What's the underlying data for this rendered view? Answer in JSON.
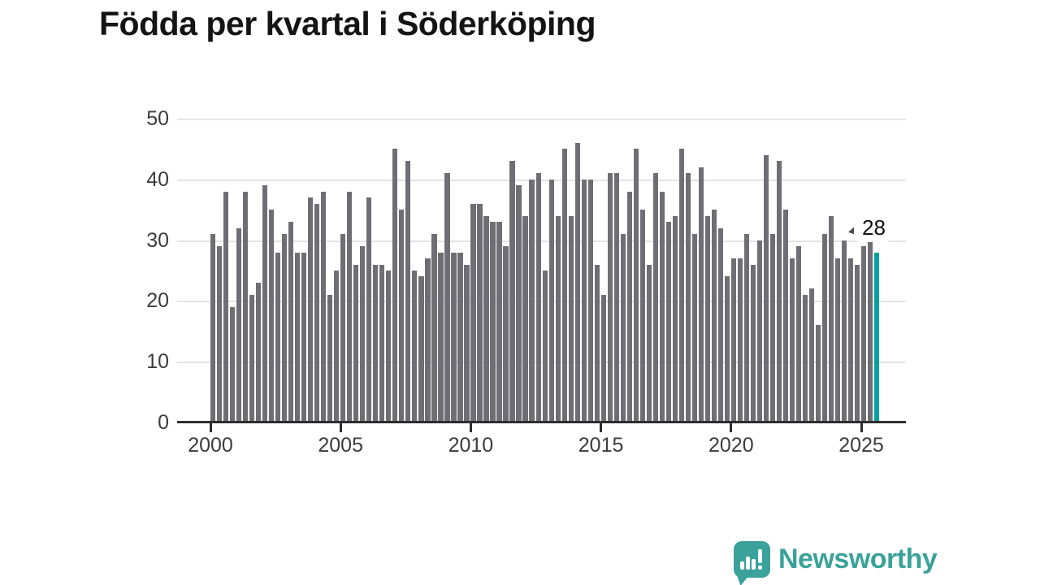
{
  "header": {
    "title": "Födda per kvartal i Söderköping"
  },
  "chart_data": {
    "type": "bar",
    "title": "Födda per kvartal i Söderköping",
    "x_unit": "quarter",
    "x_range": "2000 Q1 to 2025 Q3",
    "values": [
      31,
      29,
      38,
      19,
      32,
      38,
      21,
      23,
      39,
      35,
      28,
      31,
      33,
      28,
      28,
      37,
      36,
      38,
      21,
      25,
      31,
      38,
      26,
      29,
      37,
      26,
      26,
      25,
      45,
      35,
      43,
      25,
      24,
      27,
      31,
      28,
      41,
      28,
      28,
      26,
      36,
      36,
      34,
      33,
      33,
      29,
      43,
      39,
      34,
      40,
      41,
      25,
      40,
      34,
      45,
      34,
      46,
      40,
      40,
      26,
      21,
      41,
      41,
      31,
      38,
      45,
      35,
      26,
      41,
      38,
      33,
      34,
      45,
      41,
      31,
      42,
      34,
      35,
      32,
      24,
      27,
      27,
      31,
      26,
      30,
      44,
      31,
      43,
      35,
      27,
      29,
      21,
      22,
      16,
      31,
      34,
      27,
      30,
      27,
      26,
      29,
      30,
      28
    ],
    "highlight": {
      "index": 102,
      "value": 28,
      "label": "28",
      "color": "#00a29a"
    },
    "bar_color": "#6f6e74",
    "ylim": [
      0,
      50
    ],
    "yticks": [
      0,
      10,
      20,
      30,
      40,
      50
    ],
    "xticks": [
      2000,
      2005,
      2010,
      2015,
      2020,
      2025
    ],
    "grid": true,
    "legend": "none"
  },
  "annotation": {
    "value_label": "28"
  },
  "branding": {
    "name": "Newsworthy"
  }
}
